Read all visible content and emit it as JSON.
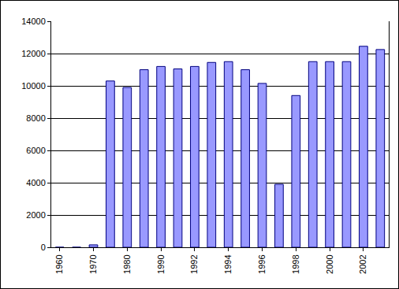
{
  "chart_data": {
    "type": "bar",
    "categories": [
      "1960",
      null,
      "1970",
      null,
      "1980",
      null,
      "1990",
      null,
      "1992",
      null,
      "1994",
      null,
      "1996",
      null,
      "1998",
      null,
      "2000",
      null,
      "2002",
      null
    ],
    "values": [
      0,
      0,
      150,
      10300,
      9900,
      11000,
      11200,
      11050,
      11200,
      11450,
      11500,
      11000,
      10150,
      3900,
      9400,
      11500,
      11500,
      11500,
      12450,
      12250
    ],
    "color": "#9999ff",
    "ylim": [
      0,
      14000
    ],
    "yticks": [
      0,
      2000,
      4000,
      6000,
      8000,
      10000,
      12000,
      14000
    ],
    "grid": true
  }
}
